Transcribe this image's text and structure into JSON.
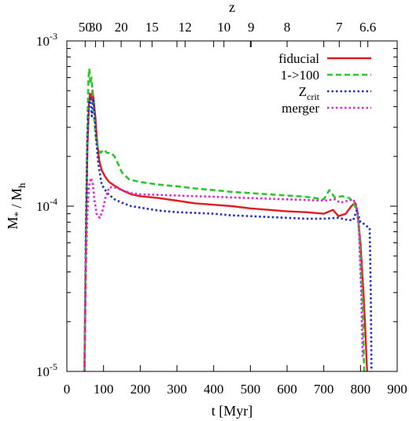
{
  "chart_data": {
    "type": "line",
    "xlabel": "t [Myr]",
    "ylabel": "M* / Mh",
    "top_axis_label": "z",
    "xlim": [
      0,
      900
    ],
    "ylim": [
      1e-05,
      0.001
    ],
    "y_scale": "log",
    "x_ticks": [
      "0",
      "100",
      "200",
      "300",
      "400",
      "500",
      "600",
      "700",
      "800",
      "900"
    ],
    "y_ticks": [
      {
        "base": "10",
        "exp": "-5"
      },
      {
        "base": "10",
        "exp": "-4"
      },
      {
        "base": "10",
        "exp": "-3"
      }
    ],
    "top_ticks": [
      {
        "label": "50",
        "t": 50
      },
      {
        "label": "30",
        "t": 78
      },
      {
        "label": "20",
        "t": 148
      },
      {
        "label": "15",
        "t": 232
      },
      {
        "label": "12",
        "t": 322
      },
      {
        "label": "10",
        "t": 428
      },
      {
        "label": "9",
        "t": 502
      },
      {
        "label": "8",
        "t": 600
      },
      {
        "label": "7",
        "t": 742
      },
      {
        "label": "6.6",
        "t": 820
      }
    ],
    "grid": false,
    "legend_position": "top-right",
    "series": [
      {
        "name": "fiducial",
        "color": "#e41a1c",
        "style": "solid",
        "points": [
          [
            48,
            1e-05
          ],
          [
            52,
            6e-05
          ],
          [
            56,
            0.00022
          ],
          [
            60,
            0.00041
          ],
          [
            63,
            0.00048
          ],
          [
            66,
            0.00044
          ],
          [
            70,
            0.0005
          ],
          [
            74,
            0.00042
          ],
          [
            78,
            0.00034
          ],
          [
            82,
            0.00025
          ],
          [
            88,
            0.00019
          ],
          [
            95,
            0.000165
          ],
          [
            105,
            0.00015
          ],
          [
            115,
            0.00014
          ],
          [
            130,
            0.000133
          ],
          [
            150,
            0.000125
          ],
          [
            175,
            0.000118
          ],
          [
            200,
            0.000115
          ],
          [
            250,
            0.000112
          ],
          [
            300,
            0.000108
          ],
          [
            350,
            0.000104
          ],
          [
            400,
            0.000102
          ],
          [
            450,
            0.0001
          ],
          [
            500,
            9.7e-05
          ],
          [
            550,
            9.5e-05
          ],
          [
            600,
            9.3e-05
          ],
          [
            650,
            9.2e-05
          ],
          [
            700,
            9e-05
          ],
          [
            725,
            9.5e-05
          ],
          [
            740,
            8.7e-05
          ],
          [
            760,
            9e-05
          ],
          [
            775,
            0.0001
          ],
          [
            785,
            0.000105
          ],
          [
            792,
            9.2e-05
          ],
          [
            800,
            6e-05
          ],
          [
            808,
            3e-05
          ],
          [
            813,
            1.8e-05
          ],
          [
            818,
            1e-05
          ]
        ]
      },
      {
        "name": "1->100",
        "color": "#2ac82a",
        "style": "dashed",
        "points": [
          [
            48,
            1e-05
          ],
          [
            52,
            8e-05
          ],
          [
            56,
            0.0003
          ],
          [
            59,
            0.0006
          ],
          [
            61,
            0.00068
          ],
          [
            64,
            0.00055
          ],
          [
            67,
            0.0006
          ],
          [
            70,
            0.00048
          ],
          [
            74,
            0.00035
          ],
          [
            78,
            0.00027
          ],
          [
            84,
            0.00023
          ],
          [
            92,
            0.00021
          ],
          [
            100,
            0.00022
          ],
          [
            110,
            0.00021
          ],
          [
            120,
            0.00021
          ],
          [
            130,
            0.0002
          ],
          [
            140,
            0.00018
          ],
          [
            150,
            0.00016
          ],
          [
            170,
            0.000145
          ],
          [
            200,
            0.00014
          ],
          [
            250,
            0.000135
          ],
          [
            300,
            0.000132
          ],
          [
            350,
            0.000128
          ],
          [
            400,
            0.000125
          ],
          [
            450,
            0.000122
          ],
          [
            500,
            0.00012
          ],
          [
            550,
            0.000118
          ],
          [
            600,
            0.000116
          ],
          [
            650,
            0.000114
          ],
          [
            700,
            0.00011
          ],
          [
            715,
            0.000125
          ],
          [
            730,
            0.000113
          ],
          [
            750,
            0.000115
          ],
          [
            770,
            0.000112
          ],
          [
            780,
            0.000105
          ],
          [
            790,
            9.5e-05
          ],
          [
            795,
            8e-05
          ],
          [
            800,
            5e-05
          ],
          [
            806,
            2.5e-05
          ],
          [
            810,
            1e-05
          ]
        ]
      },
      {
        "name": "Z_crit",
        "display_name": {
          "base": "Z",
          "sub": "crit"
        },
        "color": "#1f2fc8",
        "style": "dotted",
        "points": [
          [
            48,
            1e-05
          ],
          [
            52,
            7e-05
          ],
          [
            56,
            0.00025
          ],
          [
            60,
            0.00042
          ],
          [
            64,
            0.00045
          ],
          [
            68,
            0.00035
          ],
          [
            72,
            0.00045
          ],
          [
            76,
            0.00035
          ],
          [
            80,
            0.00025
          ],
          [
            86,
            0.00018
          ],
          [
            95,
            0.000135
          ],
          [
            110,
            0.00012
          ],
          [
            130,
            0.00011
          ],
          [
            150,
            0.000105
          ],
          [
            175,
            0.0001
          ],
          [
            200,
            9.8e-05
          ],
          [
            250,
            9.4e-05
          ],
          [
            300,
            9.2e-05
          ],
          [
            350,
            9.1e-05
          ],
          [
            400,
            9e-05
          ],
          [
            450,
            8.8e-05
          ],
          [
            500,
            8.7e-05
          ],
          [
            550,
            8.6e-05
          ],
          [
            600,
            8.5e-05
          ],
          [
            650,
            8.4e-05
          ],
          [
            700,
            8.4e-05
          ],
          [
            740,
            8.5e-05
          ],
          [
            760,
            8.3e-05
          ],
          [
            780,
            8.2e-05
          ],
          [
            790,
            9.5e-05
          ],
          [
            800,
            8e-05
          ],
          [
            810,
            7.8e-05
          ],
          [
            815,
            7.6e-05
          ],
          [
            820,
            7.5e-05
          ],
          [
            825,
            7.4e-05
          ],
          [
            828,
            3e-05
          ],
          [
            830,
            1e-05
          ]
        ]
      },
      {
        "name": "merger",
        "color": "#e020e0",
        "style": "dotted",
        "points": [
          [
            48,
            1e-05
          ],
          [
            52,
            4.5e-05
          ],
          [
            56,
            9e-05
          ],
          [
            60,
            0.00013
          ],
          [
            65,
            0.000148
          ],
          [
            70,
            0.00014
          ],
          [
            75,
            0.00011
          ],
          [
            82,
            8.8e-05
          ],
          [
            90,
            8.5e-05
          ],
          [
            98,
            9.5e-05
          ],
          [
            105,
            0.000112
          ],
          [
            115,
            0.00013
          ],
          [
            130,
            0.00013
          ],
          [
            150,
            0.000125
          ],
          [
            175,
            0.00012
          ],
          [
            200,
            0.000118
          ],
          [
            250,
            0.000117
          ],
          [
            300,
            0.000116
          ],
          [
            350,
            0.000115
          ],
          [
            400,
            0.000114
          ],
          [
            450,
            0.000113
          ],
          [
            500,
            0.000112
          ],
          [
            550,
            0.000111
          ],
          [
            600,
            0.00011
          ],
          [
            650,
            0.000109
          ],
          [
            700,
            0.000108
          ],
          [
            730,
            0.00011
          ],
          [
            745,
            0.000105
          ],
          [
            760,
            0.000107
          ],
          [
            780,
            0.00011
          ],
          [
            790,
            0.0001
          ],
          [
            796,
            7e-05
          ],
          [
            802,
            3e-05
          ],
          [
            806,
            1.2e-05
          ]
        ]
      }
    ]
  }
}
